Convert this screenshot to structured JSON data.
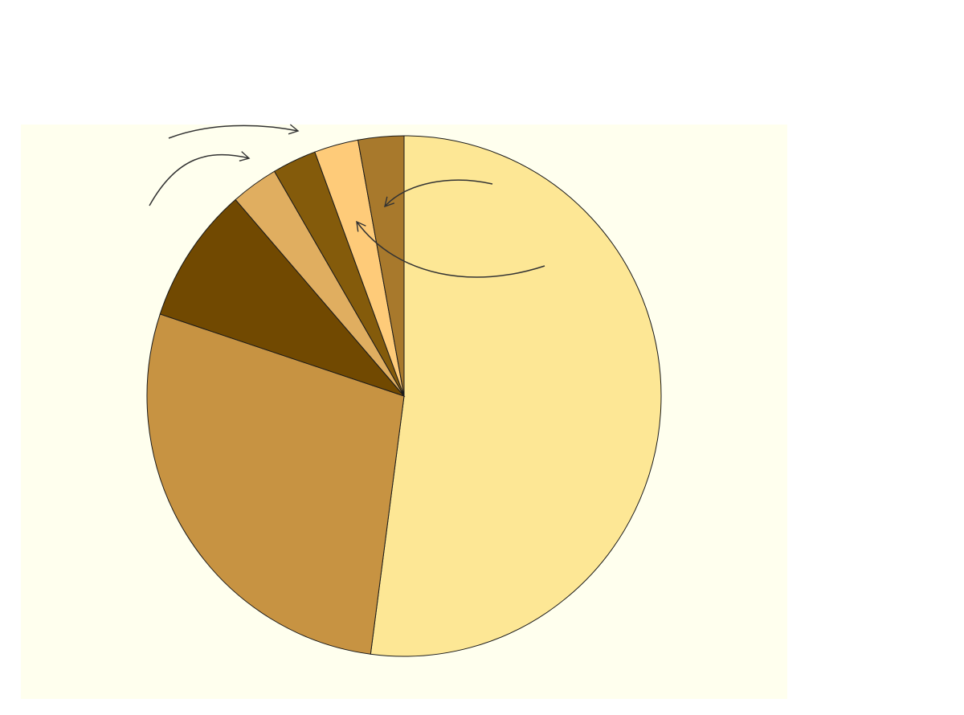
{
  "chart_data": {
    "type": "pie",
    "background_color": "#ffffee",
    "start_angle_deg": 0,
    "direction": "clockwise",
    "slices": [
      {
        "value": 52.6,
        "color": "#fde795"
      },
      {
        "value": 28.3,
        "color": "#c79342"
      },
      {
        "value": 8.6,
        "color": "#714901"
      },
      {
        "value": 3.0,
        "color": "#e0ae60"
      },
      {
        "value": 2.8,
        "color": "#845b0b"
      },
      {
        "value": 2.8,
        "color": "#fecb79"
      },
      {
        "value": 2.9,
        "color": "#a8792c"
      }
    ],
    "annotations": [
      {
        "type": "arrow",
        "target_slice": 6
      },
      {
        "type": "arrow",
        "target_slice": 5
      },
      {
        "type": "arrow",
        "target_slice": 3
      },
      {
        "type": "arrow",
        "target_slice": 4
      }
    ],
    "legend": "none",
    "title": ""
  }
}
